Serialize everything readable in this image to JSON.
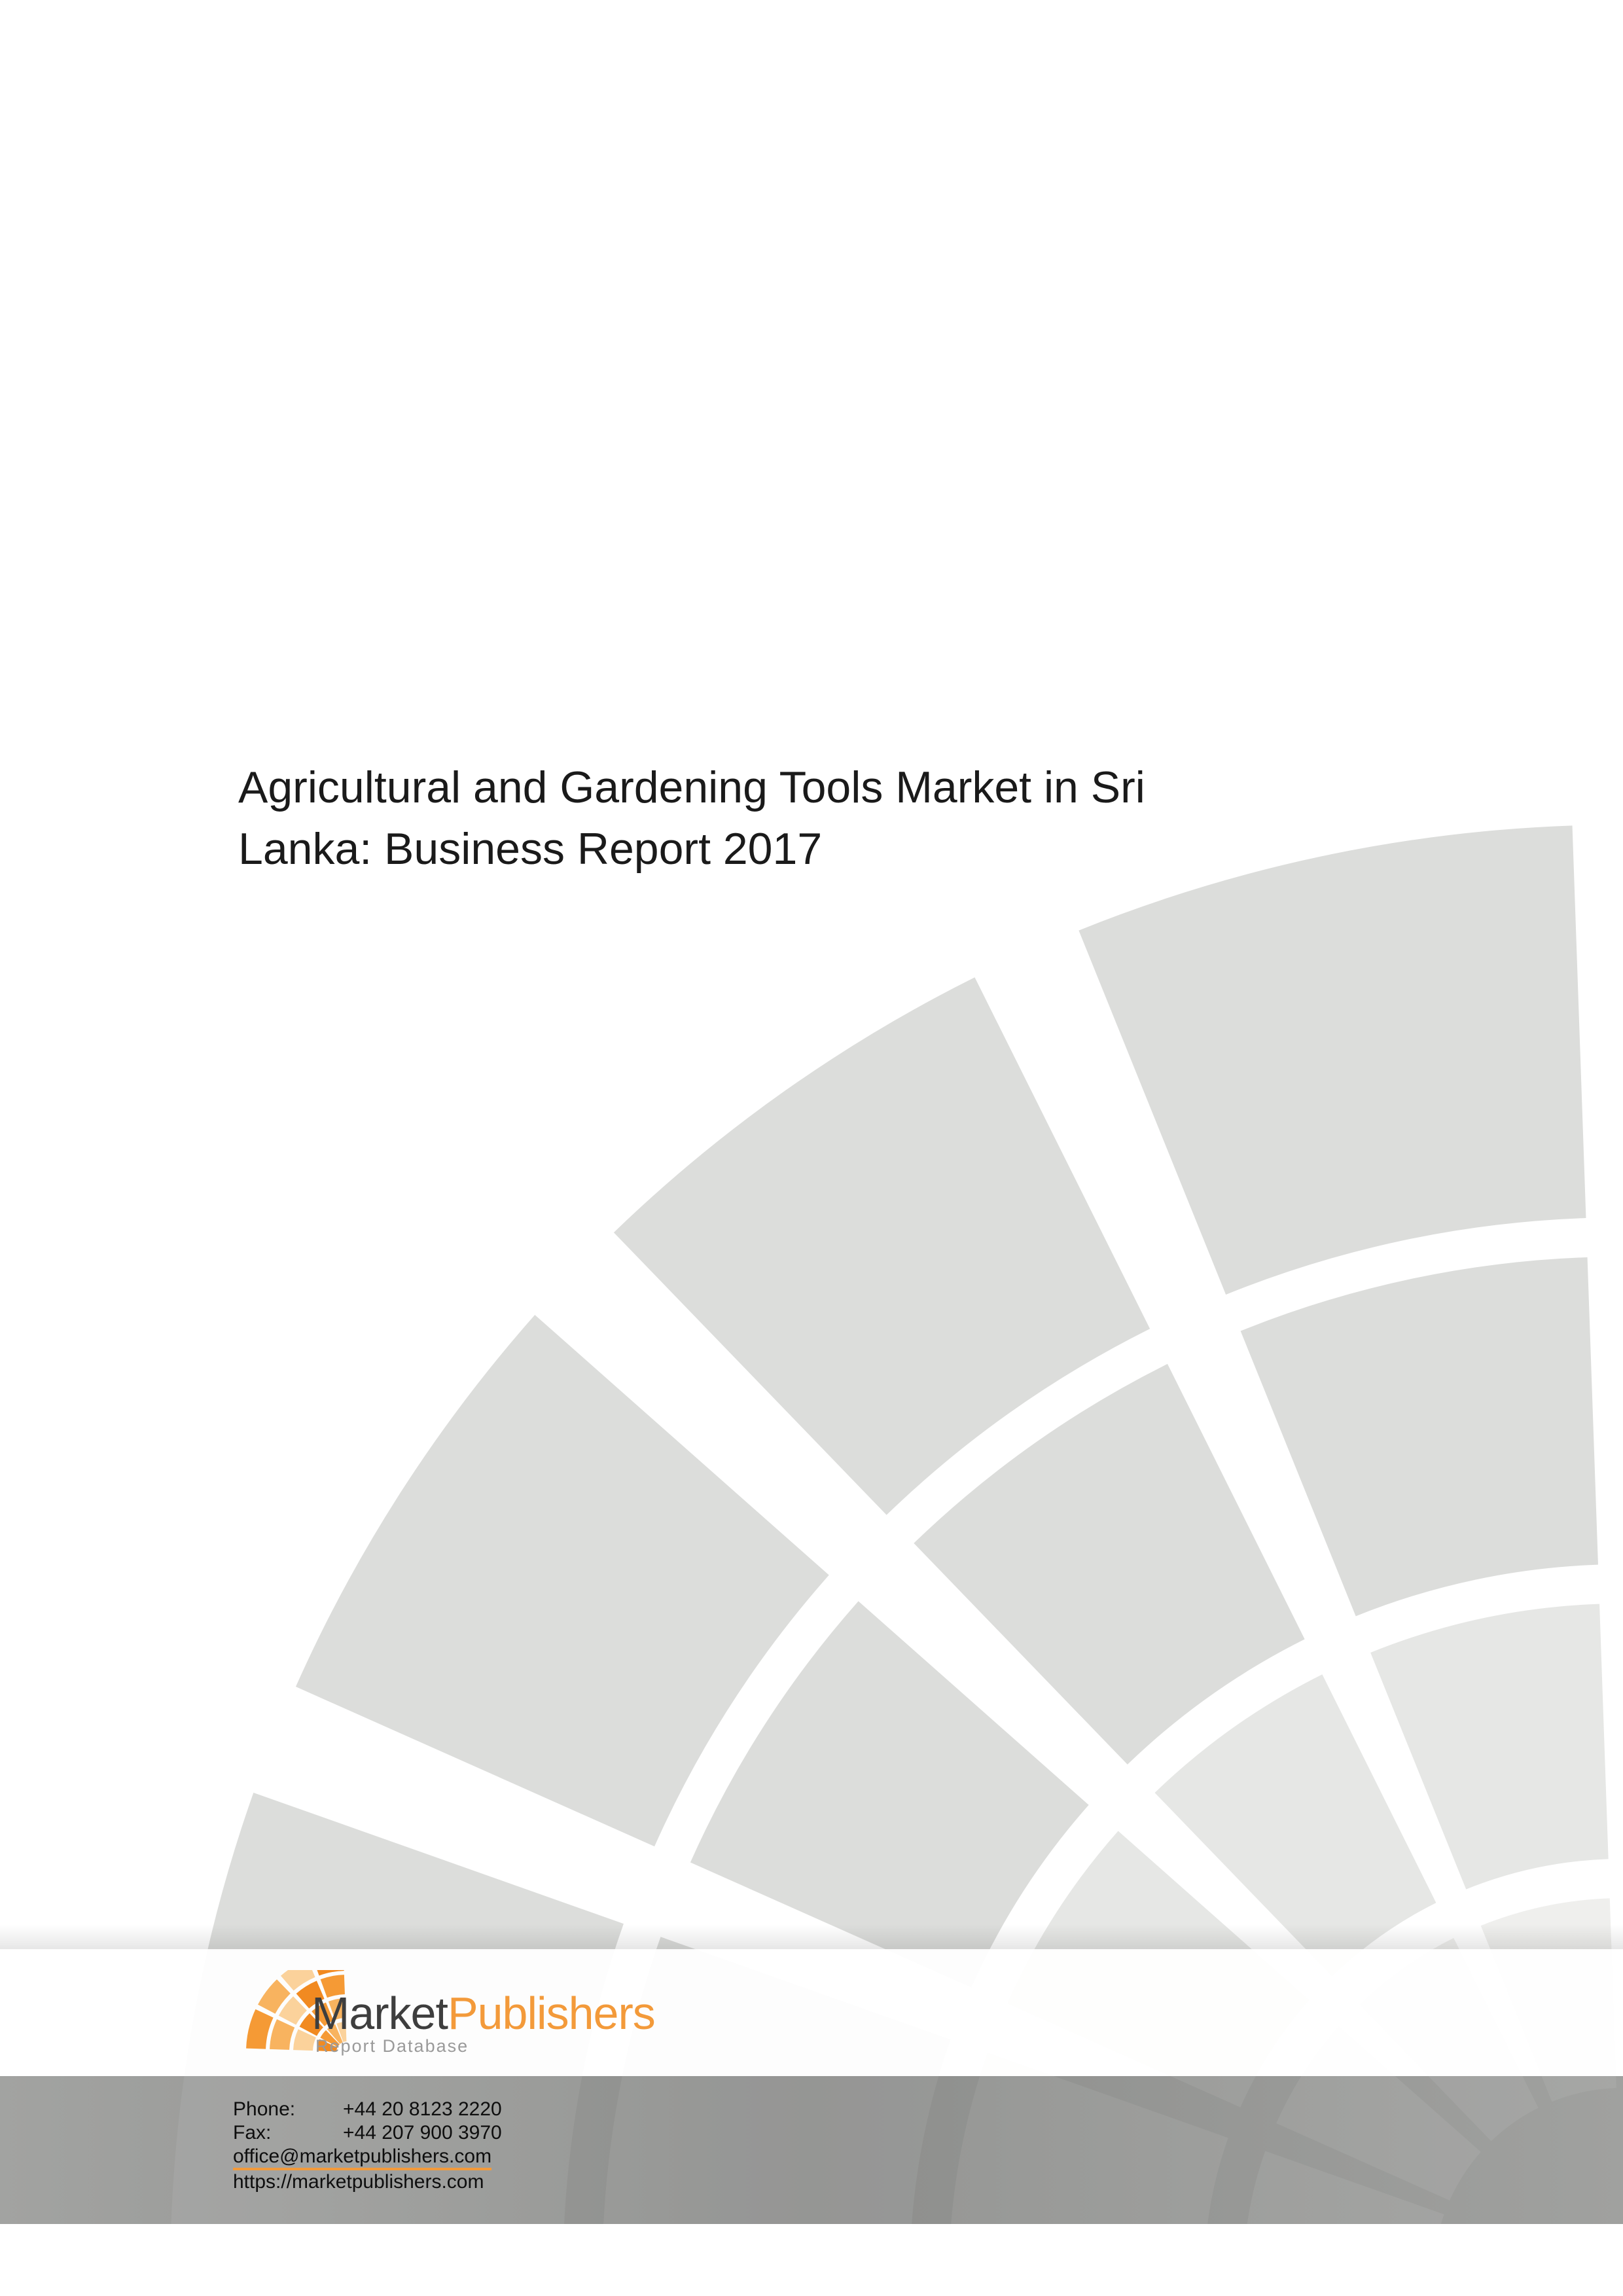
{
  "title": {
    "line1": "Agricultural and Gardening Tools Market in Sri",
    "line2": "Lanka: Business Report 2017"
  },
  "brand": {
    "name_part1": "Market",
    "name_part2": "Publishers",
    "subtitle": "Report Database",
    "accent_color": "#f39a3a",
    "dark_color": "#3e3e3e"
  },
  "contact": {
    "phone_label": "Phone:",
    "phone": "+44 20 8123 2220",
    "fax_label": "Fax:",
    "fax": "+44 207 900 3970",
    "email": "office@marketpublishers.com",
    "website": "https://marketpublishers.com"
  },
  "colors": {
    "tile_dark": "#dcdddb",
    "tile_mid": "#e6e7e5",
    "tile_light": "#efefed",
    "footer_band": "#9b9c9a"
  }
}
